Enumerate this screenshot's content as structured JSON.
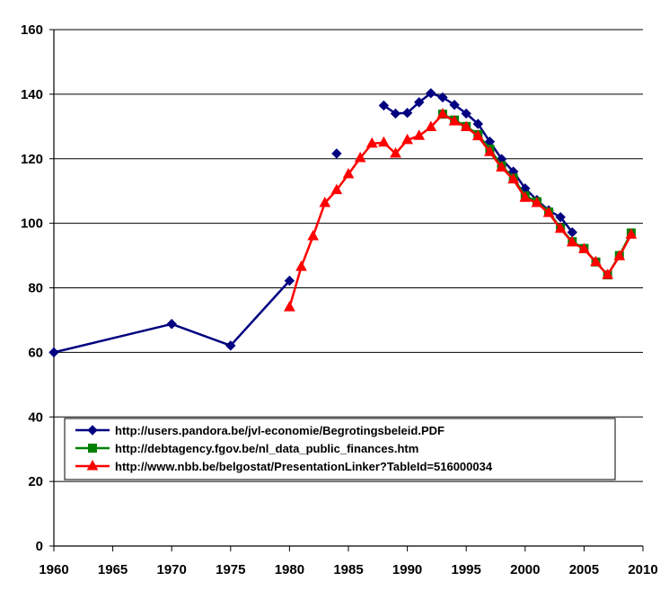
{
  "chart_data": {
    "type": "line",
    "title": "",
    "xlabel": "",
    "ylabel": "",
    "xlim": [
      1960,
      2010
    ],
    "ylim": [
      0,
      160
    ],
    "x_ticks": [
      1960,
      1965,
      1970,
      1975,
      1980,
      1985,
      1990,
      1995,
      2000,
      2005,
      2010
    ],
    "y_ticks": [
      0,
      20,
      40,
      60,
      80,
      100,
      120,
      140,
      160
    ],
    "grid": "horizontal",
    "legend_position": "inside-bottom",
    "series": [
      {
        "name": "http://users.pandora.be/jvl-economie/Begrotingsbeleid.PDF",
        "color": "#000080",
        "marker": "diamond",
        "segments": [
          [
            [
              1960,
              60
            ],
            [
              1970,
              68.8
            ],
            [
              1975,
              62.1
            ],
            [
              1980,
              82.2
            ]
          ],
          [
            [
              1984,
              121.6
            ]
          ],
          [
            [
              1988,
              136.5
            ],
            [
              1989,
              134
            ],
            [
              1990,
              134.2
            ],
            [
              1991,
              137.5
            ],
            [
              1992,
              140.3
            ],
            [
              1993,
              139
            ],
            [
              1994,
              136.7
            ],
            [
              1995,
              134
            ],
            [
              1996,
              130.8
            ],
            [
              1997,
              125.3
            ],
            [
              1998,
              119.9
            ],
            [
              1999,
              116
            ],
            [
              2000,
              110.8
            ],
            [
              2001,
              107.2
            ],
            [
              2002,
              104
            ],
            [
              2003,
              101.9
            ],
            [
              2004,
              97.2
            ]
          ]
        ]
      },
      {
        "name": "http://debtagency.fgov.be/nl_data_public_finances.htm",
        "color": "#008000",
        "marker": "square",
        "segments": [
          [
            [
              1993,
              133.8
            ],
            [
              1994,
              132
            ],
            [
              1995,
              130
            ],
            [
              1996,
              127.5
            ],
            [
              1997,
              123
            ],
            [
              1998,
              117.8
            ],
            [
              1999,
              114
            ],
            [
              2000,
              108.5
            ],
            [
              2001,
              106.7
            ],
            [
              2002,
              103.5
            ],
            [
              2003,
              98.5
            ],
            [
              2004,
              94.3
            ],
            [
              2005,
              92.2
            ],
            [
              2006,
              88
            ],
            [
              2007,
              84
            ],
            [
              2008,
              90
            ],
            [
              2009,
              97
            ]
          ]
        ]
      },
      {
        "name": "http://www.nbb.be/belgostat/PresentationLinker?TableId=516000034",
        "color": "#ff0000",
        "marker": "triangle",
        "segments": [
          [
            [
              1980,
              74
            ],
            [
              1981,
              86.5
            ],
            [
              1982,
              96
            ],
            [
              1983,
              106.3
            ],
            [
              1984,
              110.3
            ],
            [
              1985,
              115.2
            ],
            [
              1986,
              120.2
            ],
            [
              1987,
              124.7
            ],
            [
              1988,
              125
            ],
            [
              1989,
              121.6
            ],
            [
              1990,
              125.8
            ],
            [
              1991,
              127.1
            ],
            [
              1992,
              129.8
            ],
            [
              1993,
              133.8
            ],
            [
              1994,
              131.6
            ],
            [
              1995,
              129.8
            ],
            [
              1996,
              127
            ],
            [
              1997,
              122.1
            ],
            [
              1998,
              117.3
            ],
            [
              1999,
              113.6
            ],
            [
              2000,
              107.9
            ],
            [
              2001,
              106.3
            ],
            [
              2002,
              103.2
            ],
            [
              2003,
              98.3
            ],
            [
              2004,
              94.1
            ],
            [
              2005,
              92
            ],
            [
              2006,
              88
            ],
            [
              2007,
              84
            ],
            [
              2008,
              89.8
            ],
            [
              2009,
              96.5
            ]
          ]
        ]
      }
    ]
  }
}
